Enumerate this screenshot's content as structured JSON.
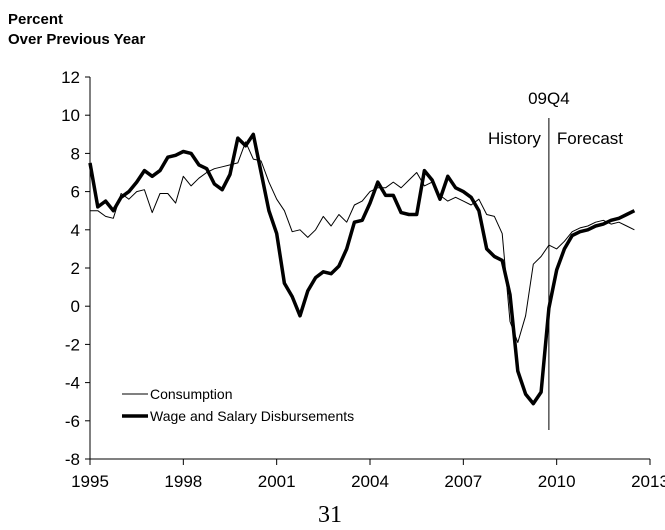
{
  "chart_data": {
    "type": "line",
    "title": "Percent",
    "subtitle": "Over Previous Year",
    "x": [
      1995,
      1995.25,
      1995.5,
      1995.75,
      1996,
      1996.25,
      1996.5,
      1996.75,
      1997,
      1997.25,
      1997.5,
      1997.75,
      1998,
      1998.25,
      1998.5,
      1998.75,
      1999,
      1999.25,
      1999.5,
      1999.75,
      2000,
      2000.25,
      2000.5,
      2000.75,
      2001,
      2001.25,
      2001.5,
      2001.75,
      2002,
      2002.25,
      2002.5,
      2002.75,
      2003,
      2003.25,
      2003.5,
      2003.75,
      2004,
      2004.25,
      2004.5,
      2004.75,
      2005,
      2005.25,
      2005.5,
      2005.75,
      2006,
      2006.25,
      2006.5,
      2006.75,
      2007,
      2007.25,
      2007.5,
      2007.75,
      2008,
      2008.25,
      2008.5,
      2008.75,
      2009,
      2009.25,
      2009.5,
      2009.75,
      2010,
      2010.25,
      2010.5,
      2010.75,
      2011,
      2011.25,
      2011.5,
      2011.75,
      2012,
      2012.25,
      2012.5
    ],
    "series": [
      {
        "name": "Consumption",
        "color": "#000000",
        "width": 1,
        "values": [
          5.0,
          5.0,
          4.7,
          4.6,
          5.9,
          5.6,
          6.0,
          6.1,
          4.9,
          5.9,
          5.9,
          5.4,
          6.8,
          6.3,
          6.7,
          7.0,
          7.2,
          7.3,
          7.4,
          7.5,
          8.6,
          7.7,
          7.6,
          6.5,
          5.6,
          5.0,
          3.9,
          4.0,
          3.6,
          4.0,
          4.7,
          4.2,
          4.8,
          4.4,
          5.3,
          5.5,
          6.0,
          6.2,
          6.2,
          6.5,
          6.2,
          6.6,
          7.0,
          6.3,
          6.5,
          5.8,
          5.5,
          5.7,
          5.5,
          5.3,
          5.6,
          4.8,
          4.7,
          3.8,
          -0.8,
          -1.9,
          -0.5,
          2.2,
          2.6,
          3.2,
          3.0,
          3.4,
          3.9,
          4.1,
          4.2,
          4.4,
          4.5,
          4.3,
          4.4,
          4.2,
          4.0
        ]
      },
      {
        "name": "Wage and Salary Disbursements",
        "color": "#000000",
        "width": 3.5,
        "values": [
          7.5,
          5.2,
          5.5,
          5.0,
          5.7,
          6.0,
          6.5,
          7.1,
          6.8,
          7.1,
          7.8,
          7.9,
          8.1,
          8.0,
          7.4,
          7.2,
          6.4,
          6.1,
          6.9,
          8.8,
          8.4,
          9.0,
          7.0,
          5.0,
          3.8,
          1.2,
          0.5,
          -0.5,
          0.8,
          1.5,
          1.8,
          1.7,
          2.1,
          3.0,
          4.4,
          4.5,
          5.4,
          6.5,
          5.8,
          5.8,
          4.9,
          4.8,
          4.8,
          7.1,
          6.6,
          5.6,
          6.8,
          6.2,
          6.0,
          5.7,
          5.0,
          3.0,
          2.6,
          2.4,
          0.6,
          -3.4,
          -4.6,
          -5.1,
          -4.5,
          -0.1,
          1.9,
          3.0,
          3.7,
          3.9,
          4.0,
          4.2,
          4.3,
          4.5,
          4.6,
          4.8,
          5.0
        ]
      }
    ],
    "xlim": [
      1995,
      2013
    ],
    "xticks": [
      1995,
      1998,
      2001,
      2004,
      2007,
      2010,
      2013
    ],
    "ylim": [
      -8,
      12
    ],
    "yticks": [
      -8,
      -6,
      -4,
      -2,
      0,
      2,
      4,
      6,
      8,
      10,
      12
    ],
    "forecast_line": {
      "x": 2009.75,
      "label": "09Q4",
      "left_label": "History",
      "right_label": "Forecast"
    },
    "legend": "lower left",
    "page_number": "31"
  }
}
